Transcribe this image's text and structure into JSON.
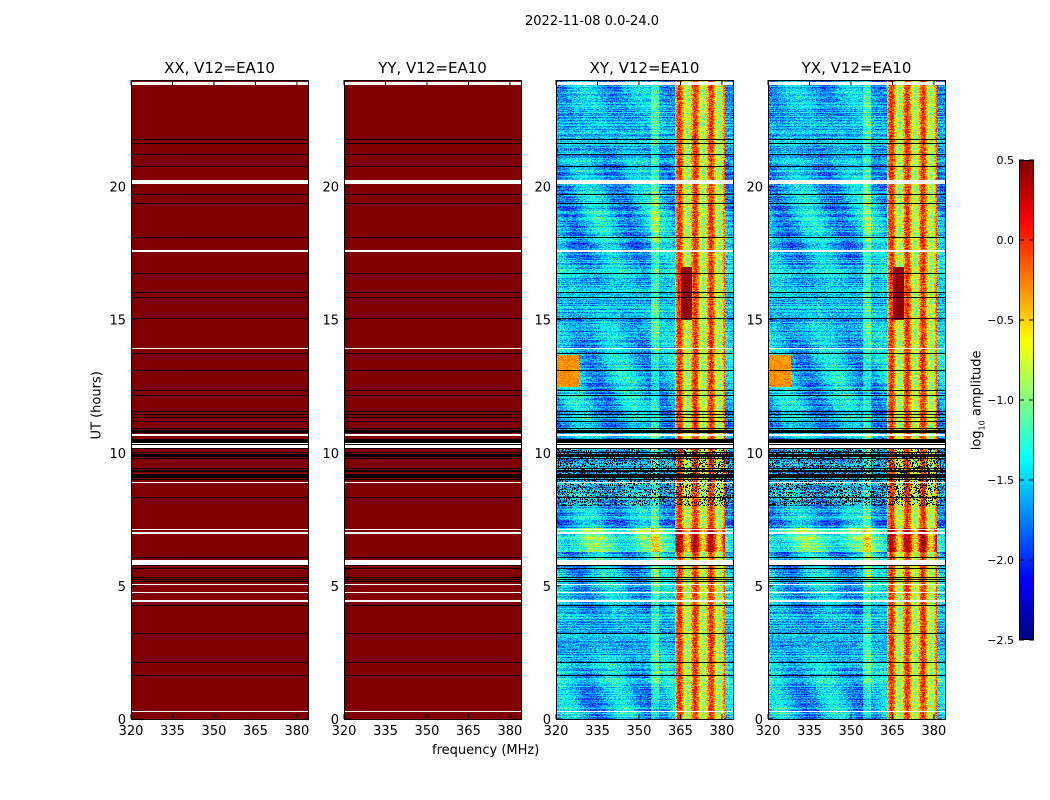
{
  "chart_data": {
    "type": "heatmap",
    "title": "2022-11-08 0.0-24.0",
    "xlabel": "frequency (MHz)",
    "ylabel": "UT (hours)",
    "xlim": [
      320,
      384
    ],
    "ylim": [
      0,
      24
    ],
    "xticks": [
      "320",
      "335",
      "350",
      "365",
      "380"
    ],
    "yticks": [
      "0",
      "5",
      "10",
      "15",
      "20"
    ],
    "panels": [
      {
        "title": "XX, V12=EA10",
        "kind": "saturated"
      },
      {
        "title": "YY, V12=EA10",
        "kind": "saturated"
      },
      {
        "title": "XY, V12=EA10",
        "kind": "cross"
      },
      {
        "title": "YX, V12=EA10",
        "kind": "cross"
      }
    ],
    "colorbar": {
      "label_main": "log",
      "label_sub": "10",
      "label_rest": " amplitude",
      "range": [
        -2.5,
        0.5
      ],
      "ticks": [
        "0.5",
        "0.0",
        "−0.5",
        "−1.0",
        "−1.5",
        "−2.0",
        "−2.5"
      ],
      "colormap": "jet"
    }
  }
}
